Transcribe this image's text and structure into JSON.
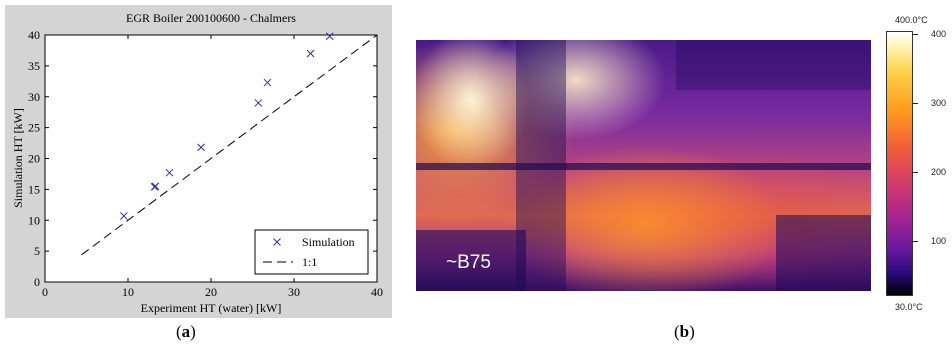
{
  "chart_data": {
    "type": "scatter",
    "title": "EGR Boiler 200100600 - Chalmers",
    "xlabel": "Experiment HT (water) [kW]",
    "ylabel": "Simulation HT [kW]",
    "xlim": [
      0,
      40
    ],
    "ylim": [
      0,
      40
    ],
    "x_ticks": [
      "0",
      "10",
      "20",
      "30",
      "40"
    ],
    "y_ticks": [
      "0",
      "5",
      "10",
      "15",
      "20",
      "25",
      "30",
      "35",
      "40"
    ],
    "grid": false,
    "legend_position": "bottom-right",
    "series": [
      {
        "name": "Simulation",
        "marker": "x",
        "color": "#2b2bb0",
        "points": [
          [
            9.5,
            10.7
          ],
          [
            13.2,
            15.4
          ],
          [
            13.3,
            15.5
          ],
          [
            15.0,
            17.7
          ],
          [
            18.8,
            21.8
          ],
          [
            25.7,
            29.0
          ],
          [
            26.8,
            32.3
          ],
          [
            32.0,
            37.0
          ],
          [
            34.3,
            39.8
          ]
        ]
      },
      {
        "name": "1:1",
        "style": "dashed",
        "color": "#000000",
        "line": [
          [
            4.4,
            4.4
          ],
          [
            40,
            40
          ]
        ]
      }
    ]
  },
  "thermal": {
    "overlay_text": "~B75",
    "colorbar": {
      "max_label": "400.0°C",
      "min_label": "30.0°C",
      "ticks": [
        "400",
        "300",
        "200",
        "100"
      ]
    }
  },
  "captions": {
    "a": "a",
    "b": "b"
  }
}
